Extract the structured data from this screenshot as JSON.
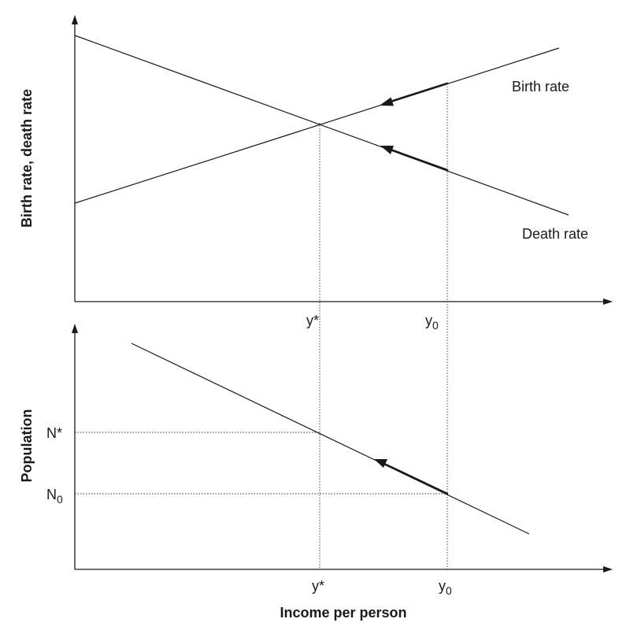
{
  "top_panel": {
    "y_axis_title": "Birth rate, death rate",
    "birth_rate_label": "Birth rate",
    "death_rate_label": "Death rate",
    "x_ticks": {
      "y_star": {
        "base": "y*",
        "sub": ""
      },
      "y_zero": {
        "base": "y",
        "sub": "0"
      }
    }
  },
  "bottom_panel": {
    "y_axis_title": "Population",
    "x_axis_title": "Income per person",
    "y_ticks": {
      "n_star": {
        "base": "N*",
        "sub": ""
      },
      "n_zero": {
        "base": "N",
        "sub": "0"
      }
    },
    "x_ticks": {
      "y_star": {
        "base": "y*",
        "sub": ""
      },
      "y_zero": {
        "base": "y",
        "sub": "0"
      }
    }
  },
  "colors": {
    "ink": "#1a1a1a",
    "background": "#ffffff"
  }
}
